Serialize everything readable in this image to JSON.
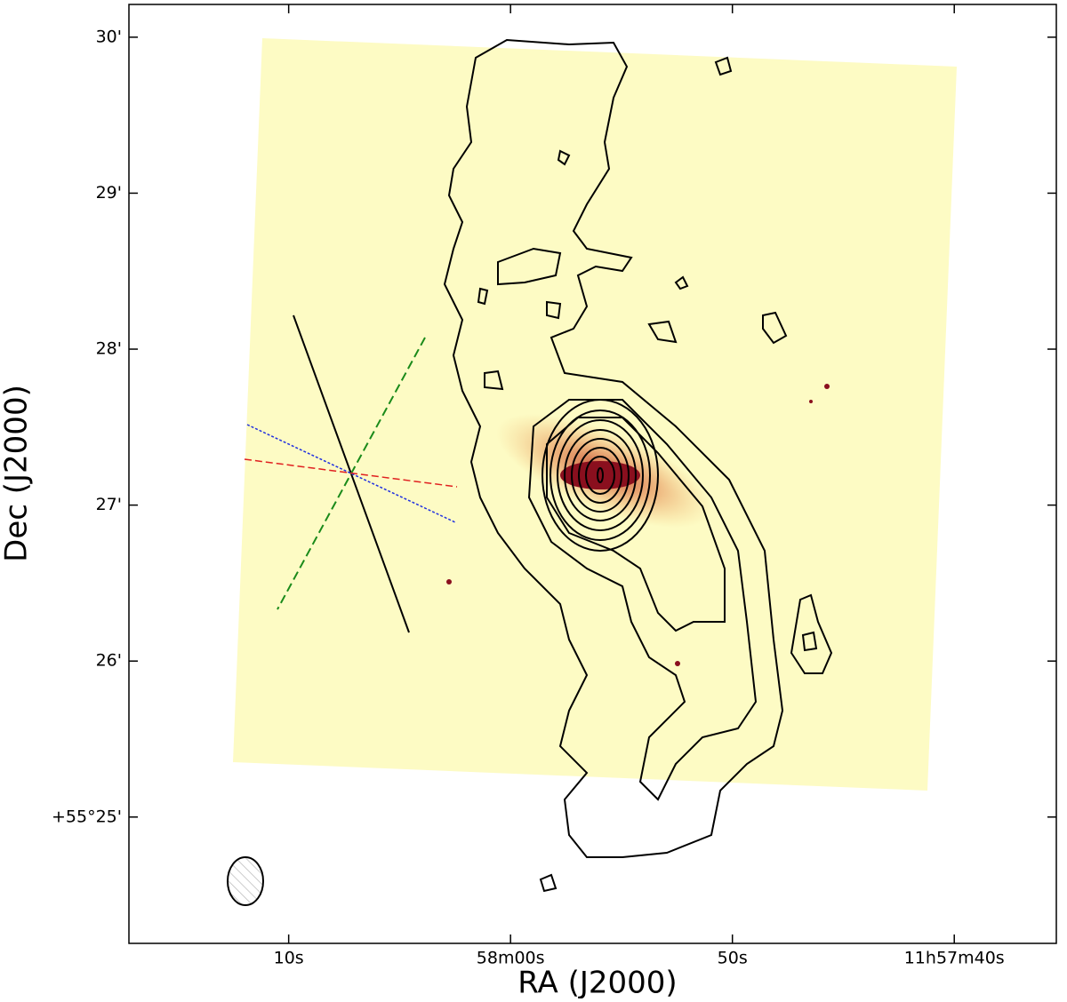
{
  "chart_data": {
    "type": "image",
    "xlabel": "RA (J2000)",
    "ylabel": "Dec (J2000)",
    "xlim": [
      77.2,
      35.4
    ],
    "ylim": [
      24.19,
      30.21
    ],
    "xticks": [
      {
        "value": 70,
        "label": "10s"
      },
      {
        "value": 60,
        "label": "58m00s"
      },
      {
        "value": 50,
        "label": "50s"
      },
      {
        "value": 40,
        "label": "11h57m40s"
      }
    ],
    "yticks": [
      {
        "value": 25,
        "label": "+55°25'"
      },
      {
        "value": 26,
        "label": "26'"
      },
      {
        "value": 27,
        "label": "27'"
      },
      {
        "value": 28,
        "label": "28'"
      },
      {
        "value": 29,
        "label": "29'"
      },
      {
        "value": 30,
        "label": "30'"
      }
    ]
  }
}
